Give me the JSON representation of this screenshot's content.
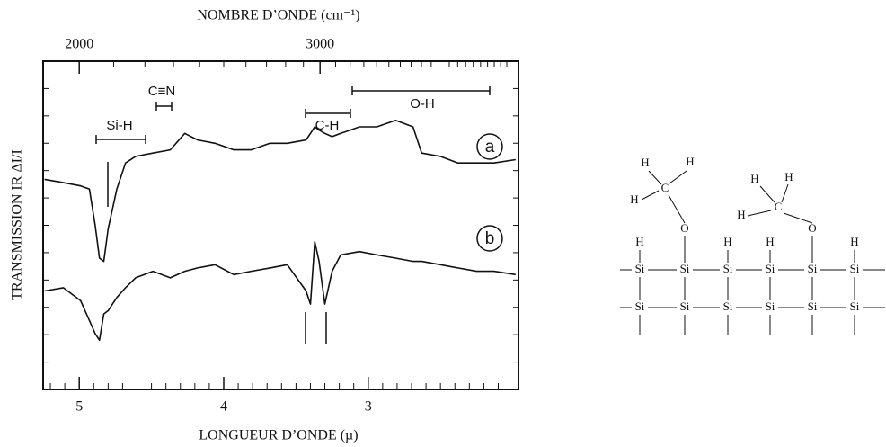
{
  "chart_data": {
    "type": "line",
    "x2label": "NOMBRE D’ONDE (cm⁻¹)",
    "xlabel": "LONGUEUR D’ONDE (µ)",
    "ylabel": "TRANSMISSION IR  ΔI/I",
    "x": [
      5.24,
      5.11,
      4.99,
      4.93,
      4.89,
      4.86,
      4.83,
      4.8,
      4.74,
      4.68,
      4.61,
      4.49,
      4.37,
      4.27,
      4.18,
      4.06,
      3.93,
      3.81,
      3.68,
      3.56,
      3.43,
      3.4,
      3.37,
      3.34,
      3.3,
      3.25,
      3.19,
      3.06,
      2.94,
      2.81,
      2.69,
      2.63,
      2.5,
      2.38,
      2.25,
      2.13,
      1.98
    ],
    "series": [
      {
        "name": "a",
        "color": "#111111",
        "values": [
          64,
          63,
          62,
          61,
          50,
          40,
          39,
          49,
          61,
          69,
          71,
          72,
          73,
          78,
          76,
          75,
          73,
          73,
          75,
          75,
          76,
          78,
          80,
          79,
          78,
          77,
          78,
          80,
          80,
          82,
          80,
          72,
          71,
          69,
          69,
          69,
          70
        ]
      },
      {
        "name": "b",
        "color": "#111111",
        "values": [
          30,
          31,
          27,
          21,
          17,
          15,
          23,
          24,
          28,
          31,
          34,
          36,
          34,
          36,
          37,
          38,
          35,
          36,
          37,
          38,
          30,
          26,
          45,
          39,
          26,
          36,
          41,
          42,
          41,
          40,
          39,
          39,
          38,
          37,
          36,
          36,
          35
        ]
      }
    ],
    "xlim": [
      5.25,
      1.96
    ],
    "ylim": [
      0,
      100
    ],
    "xticks": [
      5,
      4,
      3
    ],
    "x2ticks": [
      2000,
      3000
    ],
    "annotations": [
      "Si-H",
      "C≡N",
      "C-H",
      "O-H"
    ]
  },
  "structure": {
    "hydrogen": "H",
    "carbon": "C",
    "oxygen": "O",
    "silicon": "Si"
  }
}
